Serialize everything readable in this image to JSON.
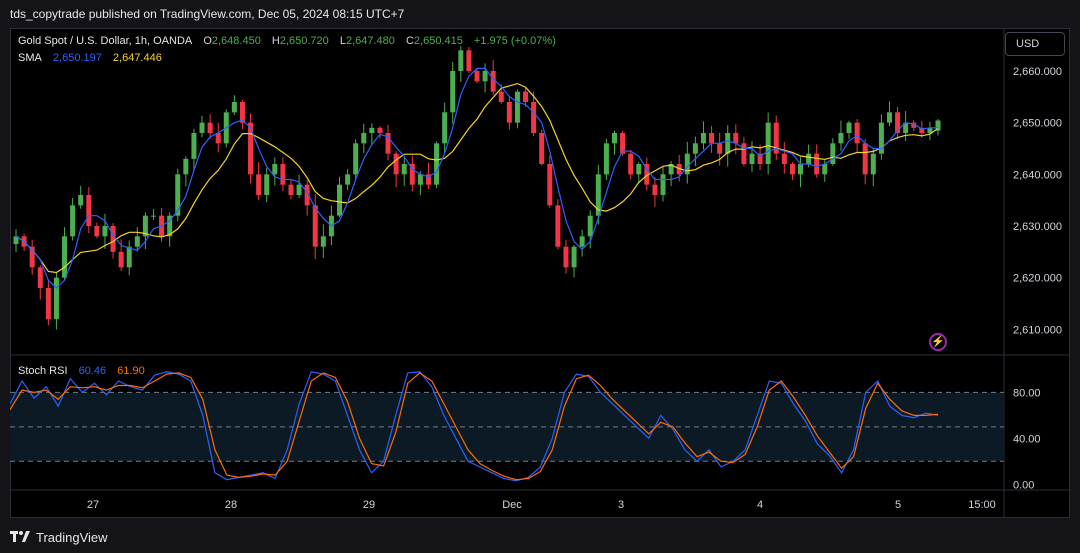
{
  "header": {
    "published": "tds_copytrade published on TradingView.com, Dec 05, 2024 08:15 UTC+7"
  },
  "legend": {
    "symbol": "Gold Spot / U.S. Dollar, 1h, OANDA",
    "o_label": "O",
    "o_value": "2,648.450",
    "h_label": "H",
    "h_value": "2,650.720",
    "l_label": "L",
    "l_value": "2,647.480",
    "c_label": "C",
    "c_value": "2,650.415",
    "change": "+1.975 (+0.07%)",
    "sma_label": "SMA",
    "sma_fast": "2,650.197",
    "sma_slow": "2,647.446"
  },
  "stoch": {
    "label": "Stoch RSI",
    "k_value": "60.46",
    "d_value": "61.90"
  },
  "currency_button": "USD",
  "footer": {
    "brand": "TradingView"
  },
  "colors": {
    "up": "#26a69a",
    "up_bright": "#4caf50",
    "down": "#f23645",
    "sma_fast": "#2962ff",
    "sma_slow": "#f5d327",
    "k_line": "#2962ff",
    "d_line": "#ff6d00",
    "background": "#000000"
  },
  "chart_data": [
    {
      "type": "candlestick",
      "title": "Gold Spot / U.S. Dollar, 1h, OANDA",
      "y_ticks": [
        "2,660.000",
        "2,650.000",
        "2,640.000",
        "2,630.000",
        "2,620.000",
        "2,610.000"
      ],
      "ylim": [
        2606,
        2666
      ],
      "x_ticks": [
        "27",
        "28",
        "29",
        "Dec",
        "3",
        "4",
        "5",
        "15:00"
      ],
      "legend_placement": "top-left",
      "close_path": [
        2628,
        2626,
        2622,
        2618,
        2612,
        2620,
        2628,
        2634,
        2636,
        2630,
        2628,
        2630,
        2625,
        2622,
        2626,
        2628,
        2632,
        2632,
        2628,
        2632,
        2640,
        2643,
        2648,
        2650,
        2648,
        2646,
        2652,
        2654,
        2650,
        2640,
        2636,
        2640,
        2642,
        2638,
        2636,
        2638,
        2634,
        2626,
        2628,
        2632,
        2638,
        2640,
        2646,
        2648,
        2649,
        2648,
        2644,
        2640,
        2642,
        2638,
        2640,
        2638,
        2646,
        2652,
        2660,
        2664,
        2660,
        2658,
        2660,
        2656,
        2654,
        2650,
        2656,
        2654,
        2648,
        2642,
        2634,
        2626,
        2622,
        2626,
        2628,
        2632,
        2640,
        2646,
        2648,
        2644,
        2640,
        2642,
        2638,
        2636,
        2640,
        2642,
        2640,
        2644,
        2646,
        2648,
        2646,
        2644,
        2648,
        2646,
        2642,
        2644,
        2642,
        2650,
        2644,
        2642,
        2640,
        2642,
        2644,
        2640,
        2642,
        2646,
        2648,
        2650,
        2646,
        2640,
        2644,
        2650,
        2652,
        2648,
        2650,
        2649,
        2648,
        2649,
        2650
      ],
      "sma_fast": {
        "label": "SMA",
        "value": "2,650.197"
      },
      "sma_slow": {
        "value": "2,647.446"
      },
      "last_bar": {
        "open": 2648.45,
        "high": 2650.72,
        "low": 2647.48,
        "close": 2650.415,
        "change": 1.975,
        "change_pct": 0.07
      }
    },
    {
      "type": "line",
      "title": "Stoch RSI",
      "y_ticks": [
        "80.00",
        "40.00",
        "0.00"
      ],
      "ylim": [
        -5,
        110
      ],
      "bands": [
        20,
        50,
        80
      ],
      "series": [
        {
          "name": "K",
          "last": 60.46,
          "values": [
            70,
            90,
            75,
            85,
            68,
            92,
            80,
            88,
            78,
            90,
            85,
            82,
            95,
            98,
            96,
            90,
            60,
            10,
            4,
            6,
            8,
            10,
            5,
            30,
            70,
            98,
            96,
            90,
            60,
            30,
            10,
            20,
            60,
            97,
            98,
            85,
            60,
            40,
            20,
            15,
            10,
            5,
            3,
            6,
            15,
            40,
            80,
            96,
            94,
            80,
            70,
            60,
            50,
            40,
            60,
            48,
            30,
            20,
            30,
            15,
            20,
            30,
            60,
            90,
            88,
            70,
            55,
            35,
            25,
            10,
            30,
            80,
            90,
            68,
            60,
            58,
            62,
            60
          ]
        },
        {
          "name": "D",
          "last": 61.9,
          "values": [
            65,
            82,
            80,
            82,
            74,
            85,
            84,
            85,
            82,
            86,
            86,
            84,
            90,
            96,
            97,
            93,
            74,
            30,
            8,
            6,
            7,
            9,
            8,
            20,
            55,
            90,
            97,
            93,
            72,
            40,
            18,
            16,
            45,
            88,
            97,
            90,
            70,
            50,
            30,
            18,
            12,
            7,
            4,
            5,
            11,
            30,
            68,
            92,
            95,
            86,
            74,
            64,
            54,
            44,
            54,
            50,
            36,
            24,
            28,
            20,
            19,
            26,
            50,
            82,
            90,
            76,
            60,
            42,
            28,
            14,
            24,
            66,
            88,
            74,
            64,
            60,
            60,
            61
          ]
        }
      ]
    }
  ]
}
